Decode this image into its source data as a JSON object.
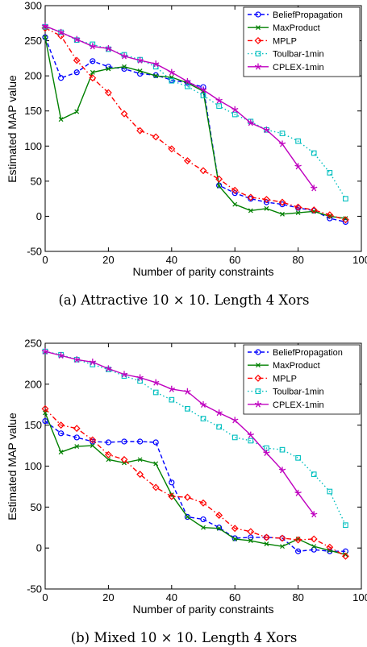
{
  "chart_data": [
    {
      "type": "line",
      "caption": "(a) Attractive 10 × 10. Length 4 Xors",
      "xlabel": "Number of parity constraints",
      "ylabel": "Estimated MAP value",
      "xlim": [
        0,
        100
      ],
      "ylim": [
        -50,
        300
      ],
      "xticks": [
        0,
        20,
        40,
        60,
        80,
        100
      ],
      "yticks": [
        -50,
        0,
        50,
        100,
        150,
        200,
        250,
        300
      ],
      "legend_position": "top-right",
      "series": [
        {
          "name": "BeliefPropagation",
          "color": "#0000ff",
          "dash": "5,3",
          "marker": "circle",
          "x": [
            0,
            5,
            10,
            15,
            20,
            25,
            30,
            35,
            40,
            45,
            50,
            55,
            60,
            65,
            70,
            75,
            80,
            85,
            90,
            95
          ],
          "y": [
            255,
            197,
            205,
            221,
            213,
            210,
            203,
            201,
            194,
            190,
            184,
            44,
            33,
            25,
            20,
            17,
            12,
            8,
            -3,
            -8
          ]
        },
        {
          "name": "MaxProduct",
          "color": "#008000",
          "dash": "",
          "marker": "x",
          "x": [
            0,
            5,
            10,
            15,
            20,
            25,
            30,
            35,
            40,
            45,
            50,
            55,
            60,
            65,
            70,
            75,
            80,
            85,
            90,
            95
          ],
          "y": [
            255,
            138,
            149,
            205,
            210,
            213,
            207,
            200,
            198,
            190,
            178,
            43,
            17,
            8,
            11,
            3,
            5,
            7,
            0,
            -3
          ]
        },
        {
          "name": "MPLP",
          "color": "#ff0000",
          "dash": "6,3,1.5,3",
          "marker": "diamond",
          "x": [
            0,
            5,
            10,
            15,
            20,
            25,
            30,
            35,
            40,
            45,
            50,
            55,
            60,
            65,
            70,
            75,
            80,
            85,
            90,
            95
          ],
          "y": [
            268,
            257,
            222,
            197,
            176,
            146,
            122,
            113,
            96,
            79,
            65,
            53,
            37,
            27,
            24,
            20,
            13,
            9,
            2,
            -5
          ]
        },
        {
          "name": "Toulbar-1min",
          "color": "#00bfbf",
          "dash": "1.5,3",
          "marker": "square",
          "x": [
            0,
            5,
            10,
            15,
            20,
            25,
            30,
            35,
            40,
            45,
            50,
            55,
            60,
            65,
            70,
            75,
            80,
            85,
            90,
            95
          ],
          "y": [
            270,
            262,
            251,
            245,
            238,
            230,
            223,
            213,
            193,
            185,
            172,
            157,
            145,
            135,
            123,
            118,
            107,
            90,
            62,
            25
          ]
        },
        {
          "name": "CPLEX-1min",
          "color": "#bf00bf",
          "dash": "",
          "marker": "star",
          "x": [
            0,
            5,
            10,
            15,
            20,
            25,
            30,
            35,
            40,
            45,
            50,
            55,
            60,
            65,
            70,
            75,
            80,
            85
          ],
          "y": [
            271,
            262,
            252,
            242,
            239,
            228,
            222,
            217,
            205,
            192,
            180,
            165,
            152,
            133,
            123,
            103,
            71,
            40
          ]
        }
      ]
    },
    {
      "type": "line",
      "caption": "(b) Mixed 10 × 10. Length 4 Xors",
      "xlabel": "Number of parity constraints",
      "ylabel": "Estimated MAP value",
      "xlim": [
        0,
        100
      ],
      "ylim": [
        -50,
        250
      ],
      "xticks": [
        0,
        20,
        40,
        60,
        80,
        100
      ],
      "yticks": [
        -50,
        0,
        50,
        100,
        150,
        200,
        250
      ],
      "legend_position": "top-right",
      "series": [
        {
          "name": "BeliefPropagation",
          "color": "#0000ff",
          "dash": "5,3",
          "marker": "circle",
          "x": [
            0,
            5,
            10,
            15,
            20,
            25,
            30,
            35,
            40,
            45,
            50,
            55,
            60,
            65,
            70,
            75,
            80,
            85,
            90,
            95
          ],
          "y": [
            155,
            140,
            135,
            130,
            129,
            130,
            130,
            129,
            80,
            38,
            35,
            25,
            12,
            13,
            13,
            12,
            -4,
            -2,
            -4,
            -4
          ]
        },
        {
          "name": "MaxProduct",
          "color": "#008000",
          "dash": "",
          "marker": "x",
          "x": [
            0,
            5,
            10,
            15,
            20,
            25,
            30,
            35,
            40,
            45,
            50,
            55,
            60,
            65,
            70,
            75,
            80,
            85,
            90,
            95
          ],
          "y": [
            165,
            117,
            124,
            125,
            108,
            104,
            108,
            103,
            65,
            38,
            25,
            24,
            11,
            9,
            5,
            2,
            11,
            2,
            -3,
            -8
          ]
        },
        {
          "name": "MPLP",
          "color": "#ff0000",
          "dash": "6,3,1.5,3",
          "marker": "diamond",
          "x": [
            0,
            5,
            10,
            15,
            20,
            25,
            30,
            35,
            40,
            45,
            50,
            55,
            60,
            65,
            70,
            75,
            80,
            85,
            90,
            95
          ],
          "y": [
            170,
            150,
            146,
            132,
            114,
            108,
            90,
            74,
            63,
            62,
            55,
            40,
            24,
            20,
            13,
            12,
            10,
            11,
            1,
            -10
          ]
        },
        {
          "name": "Toulbar-1min",
          "color": "#00bfbf",
          "dash": "1.5,3",
          "marker": "square",
          "x": [
            0,
            5,
            10,
            15,
            20,
            25,
            30,
            35,
            40,
            45,
            50,
            55,
            60,
            65,
            70,
            75,
            80,
            85,
            90,
            95
          ],
          "y": [
            240,
            236,
            230,
            224,
            218,
            210,
            204,
            190,
            181,
            170,
            158,
            148,
            135,
            131,
            122,
            120,
            110,
            90,
            69,
            28
          ]
        },
        {
          "name": "CPLEX-1min",
          "color": "#bf00bf",
          "dash": "",
          "marker": "star",
          "x": [
            0,
            5,
            10,
            15,
            20,
            25,
            30,
            35,
            40,
            45,
            50,
            55,
            60,
            65,
            70,
            75,
            80,
            85
          ],
          "y": [
            240,
            235,
            230,
            227,
            219,
            212,
            208,
            202,
            194,
            191,
            175,
            165,
            156,
            138,
            116,
            95,
            67,
            41
          ]
        }
      ]
    }
  ]
}
